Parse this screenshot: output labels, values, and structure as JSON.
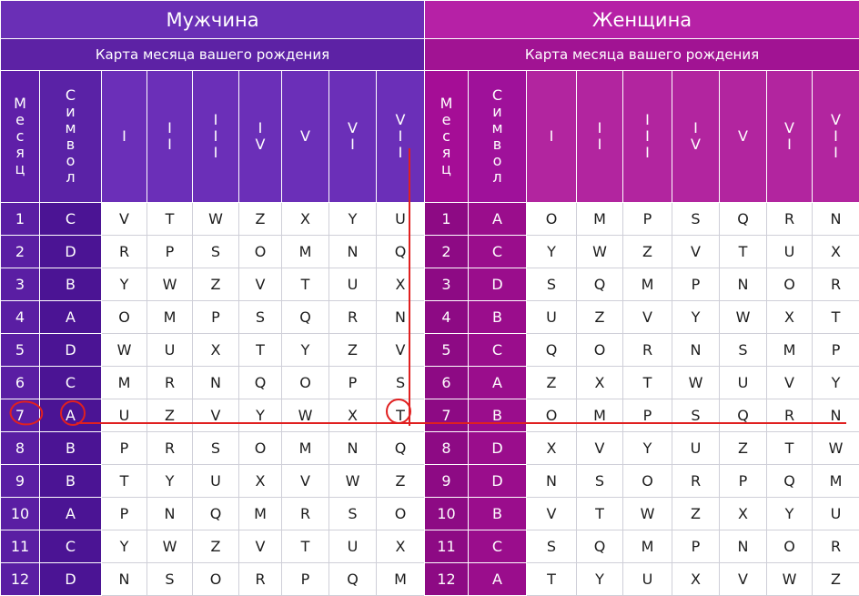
{
  "men": {
    "title": "Мужчина",
    "subtitle": "Карта месяца вашего рождения",
    "month_header": "Месяц",
    "symbol_header": "Символ",
    "columns": [
      "I",
      "II",
      "III",
      "IV",
      "V",
      "VI",
      "VII"
    ],
    "rows": [
      {
        "month": "1",
        "symbol": "C",
        "cells": [
          "V",
          "T",
          "W",
          "Z",
          "X",
          "Y",
          "U"
        ]
      },
      {
        "month": "2",
        "symbol": "D",
        "cells": [
          "R",
          "P",
          "S",
          "O",
          "M",
          "N",
          "Q"
        ]
      },
      {
        "month": "3",
        "symbol": "B",
        "cells": [
          "Y",
          "W",
          "Z",
          "V",
          "T",
          "U",
          "X"
        ]
      },
      {
        "month": "4",
        "symbol": "A",
        "cells": [
          "O",
          "M",
          "P",
          "S",
          "Q",
          "R",
          "N"
        ]
      },
      {
        "month": "5",
        "symbol": "D",
        "cells": [
          "W",
          "U",
          "X",
          "T",
          "Y",
          "Z",
          "V"
        ]
      },
      {
        "month": "6",
        "symbol": "C",
        "cells": [
          "M",
          "R",
          "N",
          "Q",
          "O",
          "P",
          "S"
        ]
      },
      {
        "month": "7",
        "symbol": "A",
        "cells": [
          "U",
          "Z",
          "V",
          "Y",
          "W",
          "X",
          "T"
        ]
      },
      {
        "month": "8",
        "symbol": "B",
        "cells": [
          "P",
          "R",
          "S",
          "O",
          "M",
          "N",
          "Q"
        ]
      },
      {
        "month": "9",
        "symbol": "B",
        "cells": [
          "T",
          "Y",
          "U",
          "X",
          "V",
          "W",
          "Z"
        ]
      },
      {
        "month": "10",
        "symbol": "A",
        "cells": [
          "P",
          "N",
          "Q",
          "M",
          "R",
          "S",
          "O"
        ]
      },
      {
        "month": "11",
        "symbol": "C",
        "cells": [
          "Y",
          "W",
          "Z",
          "V",
          "T",
          "U",
          "X"
        ]
      },
      {
        "month": "12",
        "symbol": "D",
        "cells": [
          "N",
          "S",
          "O",
          "R",
          "P",
          "Q",
          "M"
        ]
      }
    ]
  },
  "women": {
    "title": "Женщина",
    "subtitle": "Карта месяца вашего рождения",
    "month_header": "Месяц",
    "symbol_header": "Символ",
    "columns": [
      "I",
      "II",
      "III",
      "IV",
      "V",
      "VI",
      "VII"
    ],
    "rows": [
      {
        "month": "1",
        "symbol": "A",
        "cells": [
          "O",
          "M",
          "P",
          "S",
          "Q",
          "R",
          "N"
        ]
      },
      {
        "month": "2",
        "symbol": "C",
        "cells": [
          "Y",
          "W",
          "Z",
          "V",
          "T",
          "U",
          "X"
        ]
      },
      {
        "month": "3",
        "symbol": "D",
        "cells": [
          "S",
          "Q",
          "M",
          "P",
          "N",
          "O",
          "R"
        ]
      },
      {
        "month": "4",
        "symbol": "B",
        "cells": [
          "U",
          "Z",
          "V",
          "Y",
          "W",
          "X",
          "T"
        ]
      },
      {
        "month": "5",
        "symbol": "C",
        "cells": [
          "Q",
          "O",
          "R",
          "N",
          "S",
          "M",
          "P"
        ]
      },
      {
        "month": "6",
        "symbol": "A",
        "cells": [
          "Z",
          "X",
          "T",
          "W",
          "U",
          "V",
          "Y"
        ]
      },
      {
        "month": "7",
        "symbol": "B",
        "cells": [
          "O",
          "M",
          "P",
          "S",
          "Q",
          "R",
          "N"
        ]
      },
      {
        "month": "8",
        "symbol": "D",
        "cells": [
          "X",
          "V",
          "Y",
          "U",
          "Z",
          "T",
          "W"
        ]
      },
      {
        "month": "9",
        "symbol": "D",
        "cells": [
          "N",
          "S",
          "O",
          "R",
          "P",
          "Q",
          "M"
        ]
      },
      {
        "month": "10",
        "symbol": "B",
        "cells": [
          "V",
          "T",
          "W",
          "Z",
          "X",
          "Y",
          "U"
        ]
      },
      {
        "month": "11",
        "symbol": "C",
        "cells": [
          "S",
          "Q",
          "M",
          "P",
          "N",
          "O",
          "R"
        ]
      },
      {
        "month": "12",
        "symbol": "A",
        "cells": [
          "T",
          "Y",
          "U",
          "X",
          "V",
          "W",
          "Z"
        ]
      }
    ]
  },
  "annotations": {
    "color": "#e02020",
    "marked_month": "7",
    "marked_symbol": "A",
    "marked_cell": "T"
  }
}
